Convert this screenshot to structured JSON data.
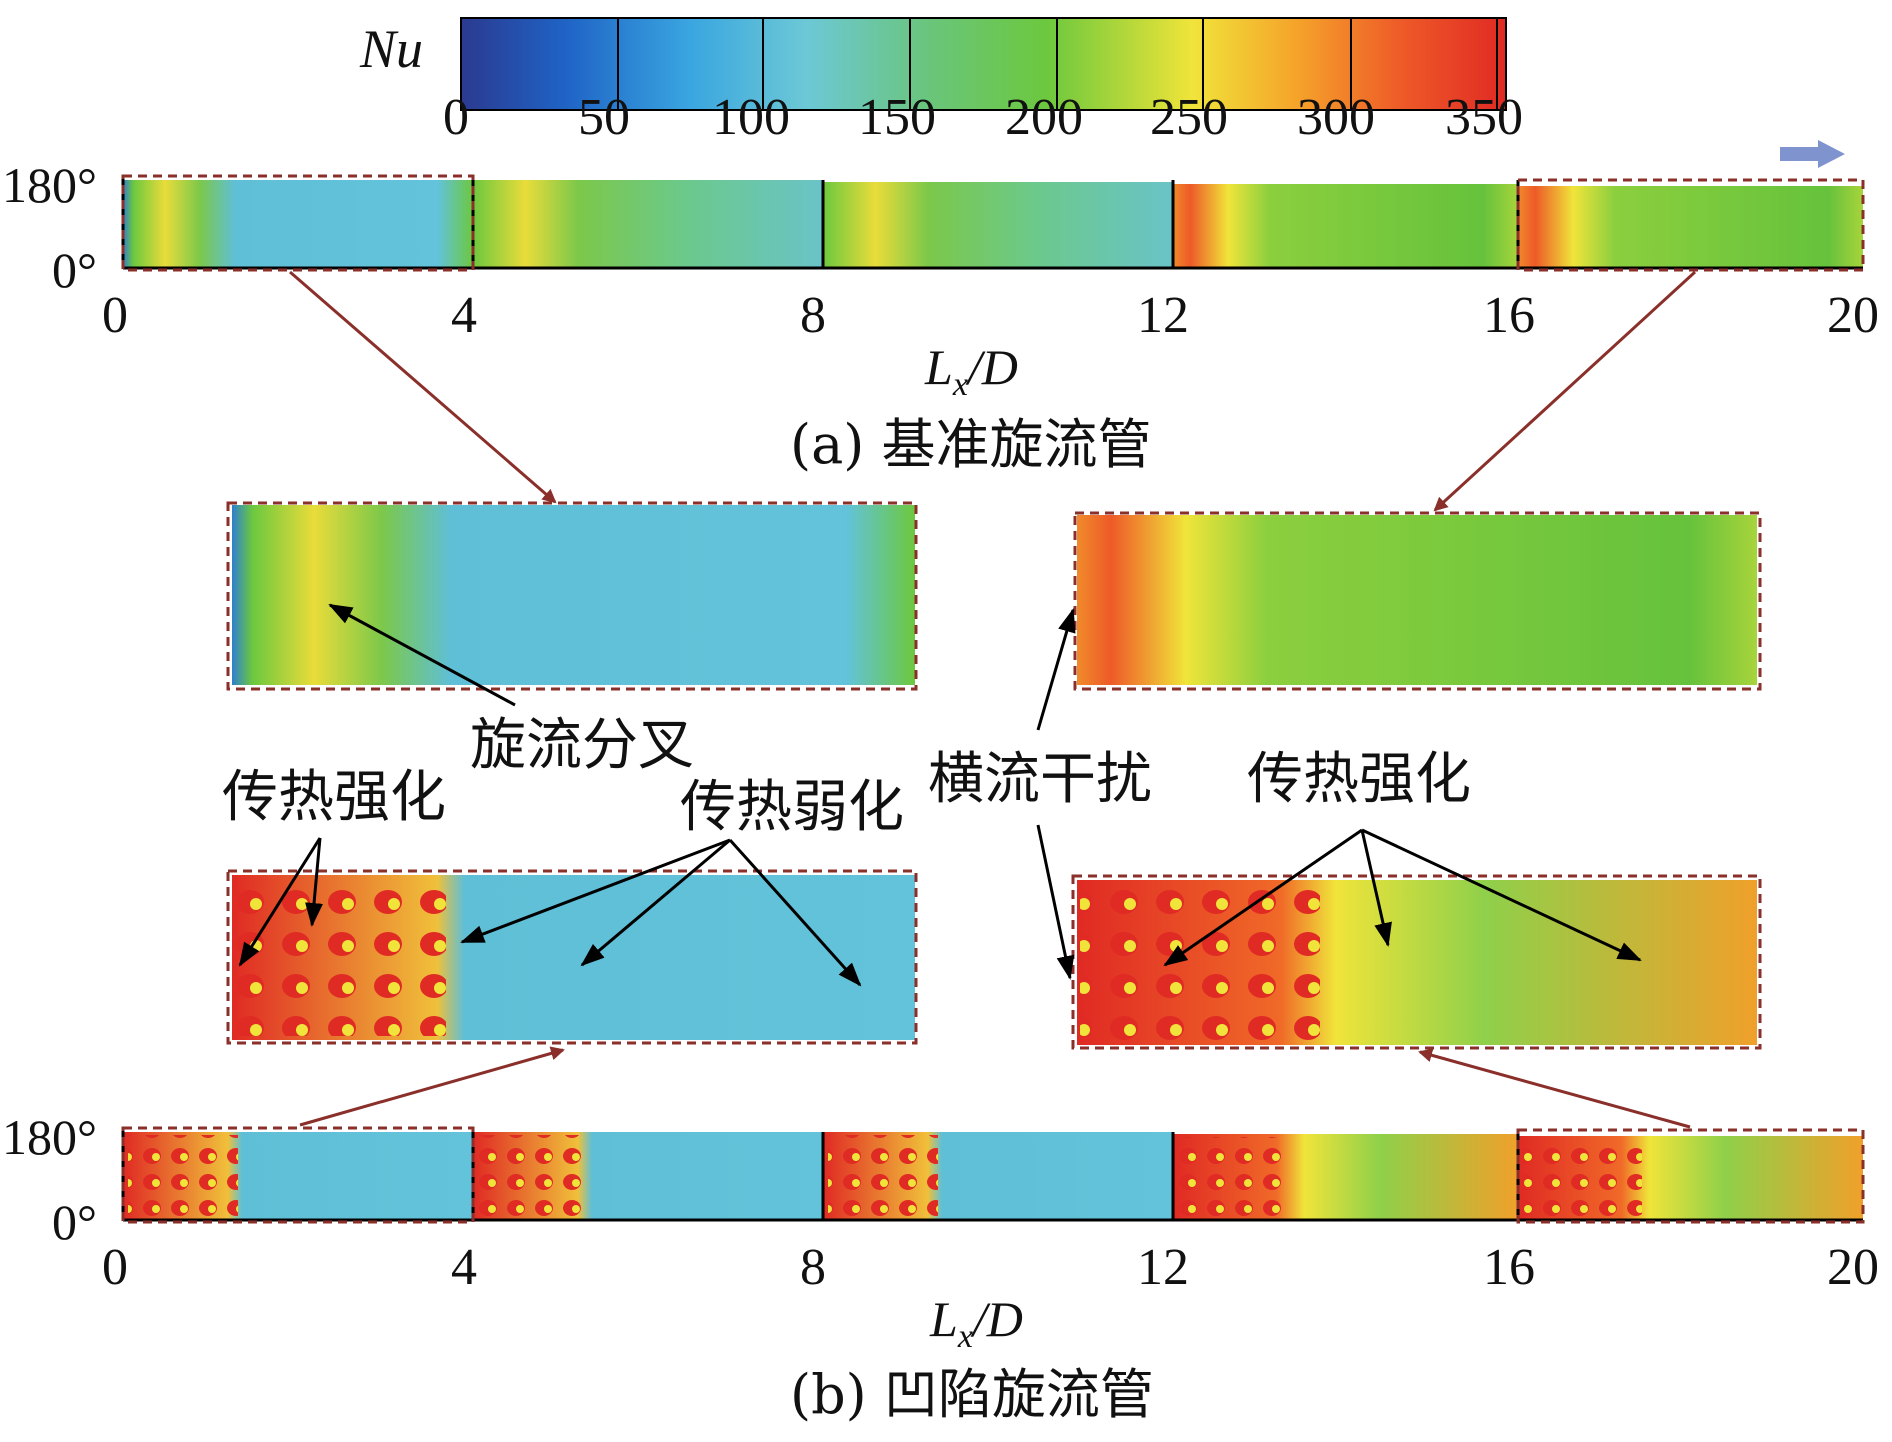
{
  "colorbar": {
    "label": "Nu",
    "ticks": [
      "0",
      "50",
      "100",
      "150",
      "200",
      "250",
      "300",
      "350"
    ],
    "colors": [
      "#2b3a8f",
      "#1f63c6",
      "#3aa6e0",
      "#6cc8d6",
      "#6ac57a",
      "#6cc83e",
      "#b6d83a",
      "#f0e43a",
      "#f5a32a",
      "#ee5a28",
      "#e02a24"
    ]
  },
  "panel_a": {
    "angle_top": "180°",
    "angle_bottom": "0°",
    "x_ticks": [
      "0",
      "4",
      "8",
      "12",
      "16",
      "20"
    ],
    "x_label_main": "L",
    "x_label_sub": "x",
    "x_label_rest": "/D",
    "caption": "(a) 基准旋流管"
  },
  "panel_b": {
    "angle_top": "180°",
    "angle_bottom": "0°",
    "x_ticks": [
      "0",
      "4",
      "8",
      "12",
      "16",
      "20"
    ],
    "x_label_main": "L",
    "x_label_sub": "x",
    "x_label_rest": "/D",
    "caption": "(b) 凹陷旋流管"
  },
  "annotations": {
    "swirl_bifurcation": "旋流分叉",
    "heat_enhance_left": "传热强化",
    "heat_weaken": "传热弱化",
    "crossflow": "横流干扰",
    "heat_enhance_right": "传热强化"
  }
}
